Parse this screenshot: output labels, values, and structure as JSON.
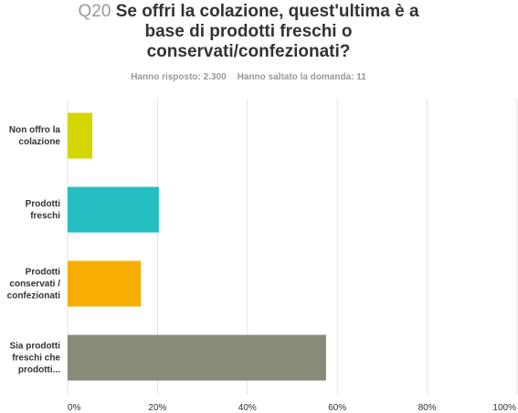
{
  "chart_data": {
    "type": "hbar",
    "question_number": "Q20",
    "title": "Se offri la colazione, quest'ultima è a base di prodotti freschi o conservati/confezionati?",
    "answered": "Hanno risposto: 2.300",
    "skipped": "Hanno saltato la domanda: 11",
    "categories": [
      "Non offro la colazione",
      "Prodotti freschi",
      "Prodotti conservati / confezionati",
      "Sia prodotti freschi che prodotti..."
    ],
    "values": [
      5.5,
      20.3,
      16.3,
      57.5
    ],
    "colors": [
      "#d3d600",
      "#25bfc3",
      "#f7ae00",
      "#8a8a79"
    ],
    "xlim": [
      0,
      100
    ],
    "xticks": [
      {
        "value": 0,
        "label": "0%"
      },
      {
        "value": 20,
        "label": "20%"
      },
      {
        "value": 40,
        "label": "40%"
      },
      {
        "value": 60,
        "label": "60%"
      },
      {
        "value": 80,
        "label": "80%"
      },
      {
        "value": 100,
        "label": "100%"
      }
    ],
    "grid": true
  }
}
